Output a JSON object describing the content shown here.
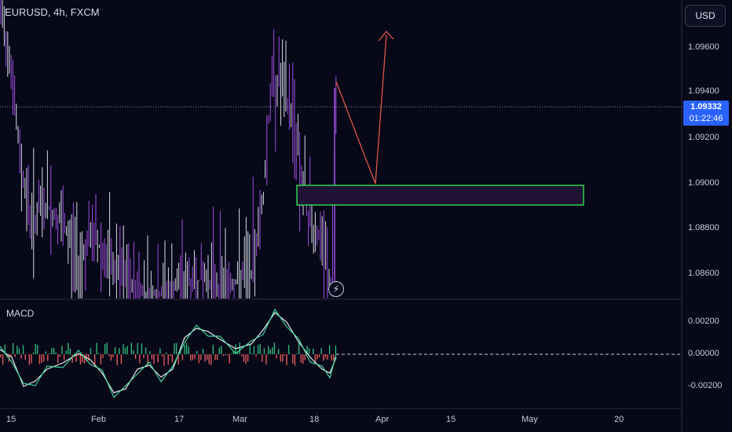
{
  "header": {
    "symbol": "EURUSD, 4h, FXCM"
  },
  "toolbar": {
    "currency_label": "USD"
  },
  "price_axis": {
    "labels": [
      "1.09600",
      "1.09400",
      "1.09200",
      "1.09000",
      "1.08800",
      "1.08600"
    ]
  },
  "current_price": {
    "value": "1.09332",
    "countdown": "01:22:46"
  },
  "macd": {
    "label": "MACD",
    "axis_labels": [
      "0.00200",
      "0.00000",
      "-0.00200"
    ]
  },
  "time_axis": {
    "labels": [
      "15",
      "Feb",
      "17",
      "Mar",
      "18",
      "Apr",
      "15",
      "May",
      "20"
    ]
  },
  "drawings": {
    "zone_box": {
      "border": "#2fd34a",
      "fill": "#1f1235"
    },
    "projection_color": "#e0574a"
  },
  "colors": {
    "background": "#070818",
    "candle_up": "#d9dbe6",
    "candle_down": "#a04fe0",
    "macd_line": "#e9ecf2",
    "signal_line": "#3fd39a"
  },
  "icons": {
    "replay": "lightning-icon"
  }
}
